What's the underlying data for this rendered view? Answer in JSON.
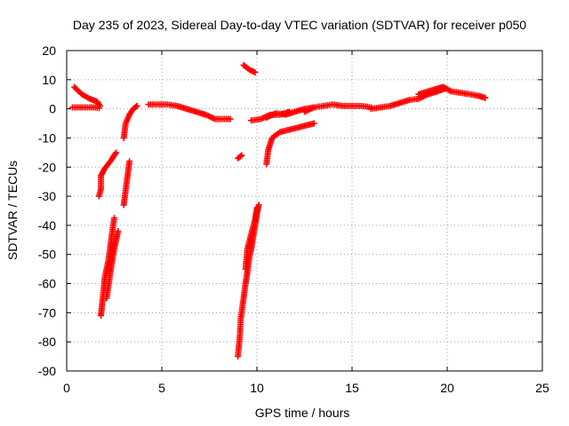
{
  "chart_data": {
    "type": "scatter",
    "title": "Day 235 of 2023, Sidereal Day-to-day VTEC variation (SDTVAR) for receiver p050",
    "xlabel": "GPS time / hours",
    "ylabel": "SDTVAR / TECUs",
    "xlim": [
      0,
      25
    ],
    "ylim": [
      -90,
      20
    ],
    "xticks": [
      "0",
      "5",
      "10",
      "15",
      "20",
      "25"
    ],
    "yticks": [
      "20",
      "10",
      "0",
      "-10",
      "-20",
      "-30",
      "-40",
      "-50",
      "-60",
      "-70",
      "-80",
      "-90"
    ],
    "grid": true,
    "marker": "+",
    "series": [
      {
        "name": "SDTVAR",
        "color": "#ff0000",
        "segments": [
          [
            [
              0.3,
              0.5
            ],
            [
              1.0,
              0.5
            ],
            [
              1.5,
              0.5
            ],
            [
              1.7,
              0.3
            ]
          ],
          [
            [
              0.4,
              7.5
            ],
            [
              0.8,
              5
            ],
            [
              1.2,
              3.5
            ],
            [
              1.6,
              2.5
            ],
            [
              1.75,
              1
            ]
          ],
          [
            [
              1.7,
              -30
            ],
            [
              1.8,
              -27.5
            ],
            [
              1.8,
              -23
            ],
            [
              2.0,
              -20.5
            ],
            [
              2.3,
              -18
            ],
            [
              2.6,
              -15
            ]
          ],
          [
            [
              1.8,
              -71
            ],
            [
              1.9,
              -65
            ],
            [
              2.0,
              -58
            ],
            [
              2.2,
              -52
            ],
            [
              2.3,
              -47
            ],
            [
              2.4,
              -42
            ],
            [
              2.5,
              -37.5
            ]
          ],
          [
            [
              2.1,
              -65
            ],
            [
              2.3,
              -56
            ],
            [
              2.5,
              -48
            ],
            [
              2.7,
              -42
            ]
          ],
          [
            [
              3.0,
              -33
            ],
            [
              3.1,
              -28
            ],
            [
              3.2,
              -23
            ],
            [
              3.3,
              -18
            ]
          ],
          [
            [
              3.0,
              -10
            ],
            [
              3.1,
              -5
            ],
            [
              3.3,
              -2
            ],
            [
              3.5,
              0
            ],
            [
              3.7,
              1
            ]
          ],
          [
            [
              4.3,
              1.5
            ],
            [
              4.8,
              1.5
            ],
            [
              5.3,
              1.5
            ],
            [
              5.8,
              1
            ],
            [
              6.3,
              0
            ],
            [
              6.8,
              -1
            ],
            [
              7.3,
              -2
            ],
            [
              7.8,
              -3.5
            ],
            [
              8.3,
              -3.5
            ],
            [
              8.6,
              -3.5
            ]
          ],
          [
            [
              9.0,
              -17
            ],
            [
              9.2,
              -16
            ]
          ],
          [
            [
              9.0,
              -85
            ],
            [
              9.1,
              -78
            ],
            [
              9.15,
              -72
            ],
            [
              9.3,
              -65
            ],
            [
              9.4,
              -60
            ],
            [
              9.5,
              -56
            ],
            [
              9.6,
              -51
            ],
            [
              9.7,
              -48
            ],
            [
              9.8,
              -44
            ],
            [
              9.9,
              -40
            ],
            [
              10.0,
              -36
            ],
            [
              10.1,
              -33
            ]
          ],
          [
            [
              9.4,
              -55
            ],
            [
              9.5,
              -48
            ],
            [
              9.7,
              -43
            ],
            [
              9.9,
              -38
            ],
            [
              10.0,
              -34
            ]
          ],
          [
            [
              9.3,
              15
            ],
            [
              9.6,
              13.5
            ],
            [
              9.9,
              12.5
            ]
          ],
          [
            [
              9.7,
              -4
            ],
            [
              10.2,
              -3.5
            ],
            [
              10.7,
              -2
            ],
            [
              11.2,
              -2
            ],
            [
              11.7,
              -1
            ]
          ],
          [
            [
              10.5,
              -19
            ],
            [
              10.6,
              -14
            ],
            [
              10.8,
              -10
            ],
            [
              11.2,
              -8
            ],
            [
              11.8,
              -7
            ],
            [
              12.4,
              -6
            ],
            [
              13.0,
              -5
            ]
          ],
          [
            [
              10.5,
              -3
            ],
            [
              11.0,
              -1.5
            ],
            [
              11.5,
              -2
            ],
            [
              12.0,
              -1
            ],
            [
              12.5,
              0
            ],
            [
              13.0,
              0.5
            ]
          ],
          [
            [
              12.5,
              -1
            ],
            [
              13.0,
              0.5
            ],
            [
              13.5,
              1
            ],
            [
              14.0,
              1.5
            ],
            [
              14.5,
              1
            ],
            [
              15.0,
              1
            ],
            [
              15.5,
              1
            ],
            [
              16.0,
              0.5
            ]
          ],
          [
            [
              16.0,
              0
            ],
            [
              16.5,
              0.5
            ],
            [
              17.0,
              1
            ],
            [
              17.5,
              2
            ],
            [
              18.0,
              3
            ],
            [
              18.5,
              3.5
            ],
            [
              19.0,
              5
            ],
            [
              19.5,
              6
            ],
            [
              19.9,
              7
            ]
          ],
          [
            [
              18.5,
              5
            ],
            [
              19.0,
              6
            ],
            [
              19.5,
              7
            ],
            [
              19.8,
              7.5
            ],
            [
              20.2,
              6
            ],
            [
              20.7,
              5.5
            ],
            [
              21.2,
              5
            ],
            [
              21.6,
              4.5
            ],
            [
              22.0,
              3.8
            ]
          ]
        ]
      }
    ]
  }
}
